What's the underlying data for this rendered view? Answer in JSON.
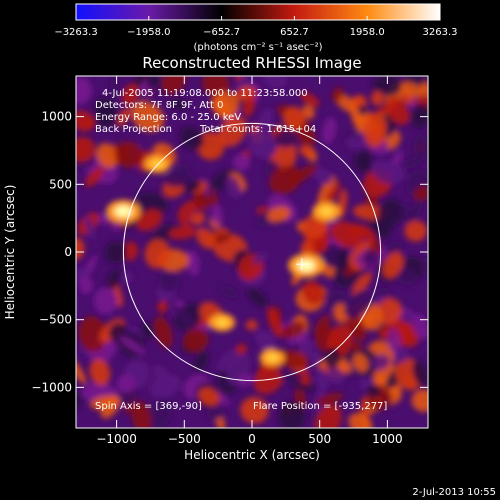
{
  "chart_data": {
    "type": "heatmap",
    "title": "Reconstructed RHESSI Image",
    "xlabel": "Heliocentric X (arcsec)",
    "ylabel": "Heliocentric Y (arcsec)",
    "xlim": [
      -1300,
      1300
    ],
    "ylim": [
      -1300,
      1300
    ],
    "xticks": [
      -1000,
      -500,
      0,
      500,
      1000
    ],
    "yticks": [
      -1000,
      -500,
      0,
      500,
      1000
    ],
    "xtick_labels": [
      "−1000",
      "−500",
      "0",
      "500",
      "1000"
    ],
    "ytick_labels": [
      "−1000",
      "−500",
      "0",
      "500",
      "1000"
    ],
    "colorbar": {
      "ticks": [
        -3263.3,
        -1958.0,
        -652.7,
        652.7,
        1958.0,
        3263.3
      ],
      "tick_labels": [
        "−3263.3",
        "−1958.0",
        "−652.7",
        "652.7",
        "1958.0",
        "3263.3"
      ],
      "unit_label": "(photons cm⁻² s⁻¹ asec⁻²)",
      "colors": [
        "#1010ff",
        "#6a1aa8",
        "#000000",
        "#c41a10",
        "#ff8a10",
        "#ffffff"
      ]
    },
    "annotations": {
      "time_range": "4-Jul-2005 11:19:08.000 to 11:23:58.000",
      "detectors": "Detectors: 7F 8F 9F, Att 0",
      "energy_range": "Energy Range: 6.0 - 25.0 keV",
      "method": "Back Projection",
      "total_counts": "Total counts: 1.615+04",
      "spin_axis": "Spin Axis = [369,-90]",
      "flare_position": "Flare Position = [-935,277]"
    },
    "solar_limb": {
      "center": [
        0,
        0
      ],
      "radius": 950
    },
    "crosshair": [
      369,
      -90
    ],
    "bright_sources": [
      {
        "x": 400,
        "y": -100,
        "value": 3263.3
      },
      {
        "x": -950,
        "y": 300,
        "value": 3000
      },
      {
        "x": 550,
        "y": 300,
        "value": 2000
      },
      {
        "x": -700,
        "y": 650,
        "value": 1700
      },
      {
        "x": -220,
        "y": -520,
        "value": 1600
      },
      {
        "x": 150,
        "y": -780,
        "value": 1500
      }
    ],
    "footer_date": "2-Jul-2013 10:55"
  }
}
